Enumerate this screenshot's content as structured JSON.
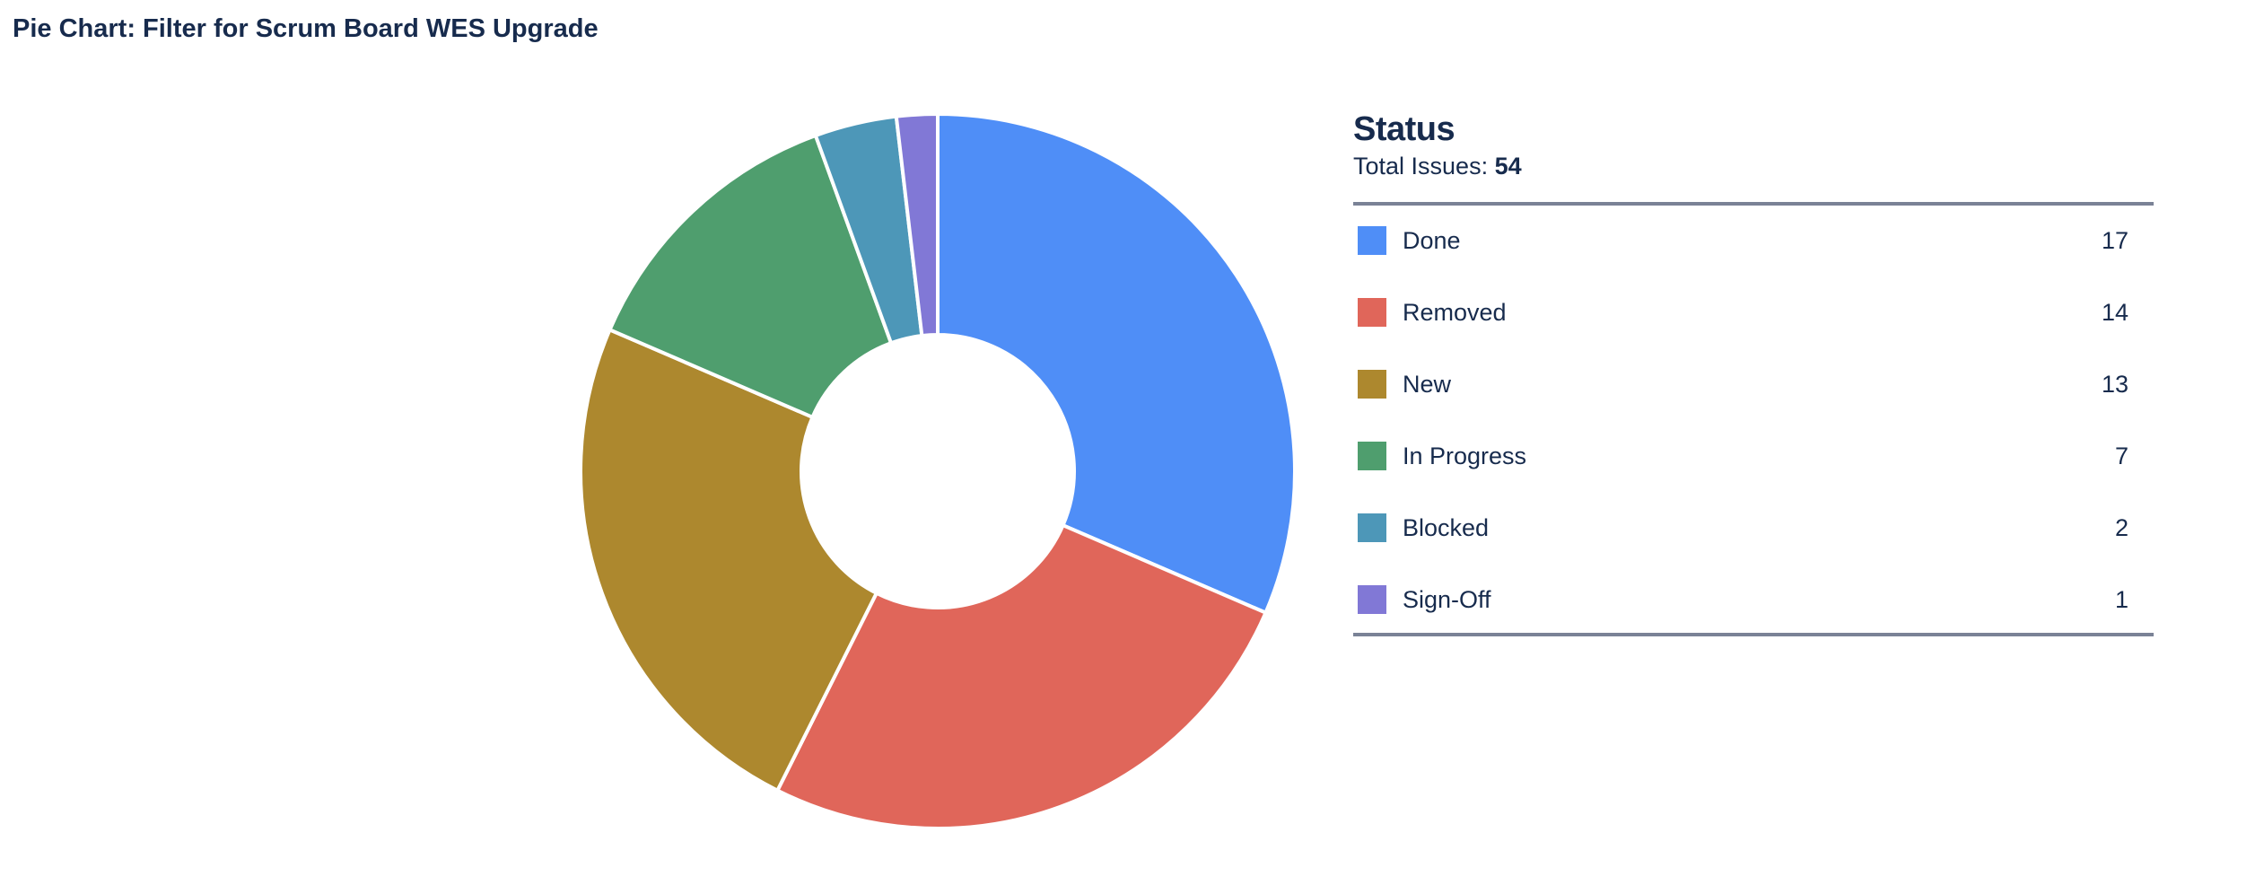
{
  "header": {
    "title": "Pie Chart: Filter for Scrum Board WES Upgrade"
  },
  "legend": {
    "heading": "Status",
    "total_label": "Total Issues:",
    "total_value": "54",
    "items": [
      {
        "label": "Done",
        "count": "17",
        "color": "#4F8EF7"
      },
      {
        "label": "Removed",
        "count": "14",
        "color": "#E0665A"
      },
      {
        "label": "New",
        "count": "13",
        "color": "#AD882E"
      },
      {
        "label": "In Progress",
        "count": "7",
        "color": "#4F9E6E"
      },
      {
        "label": "Blocked",
        "count": "2",
        "color": "#4D97B8"
      },
      {
        "label": "Sign-Off",
        "count": "1",
        "color": "#8178D6"
      }
    ]
  },
  "chart_data": {
    "type": "pie",
    "variant": "donut",
    "title": "Pie Chart: Filter for Scrum Board WES Upgrade",
    "legend_title": "Status",
    "total": 54,
    "categories": [
      "Done",
      "Removed",
      "New",
      "In Progress",
      "Blocked",
      "Sign-Off"
    ],
    "values": [
      17,
      14,
      13,
      7,
      2,
      1
    ],
    "colors": [
      "#4F8EF7",
      "#E0665A",
      "#AD882E",
      "#4F9E6E",
      "#4D97B8",
      "#8178D6"
    ],
    "legend_position": "right",
    "start_angle": "12 o'clock",
    "direction": "clockwise"
  }
}
